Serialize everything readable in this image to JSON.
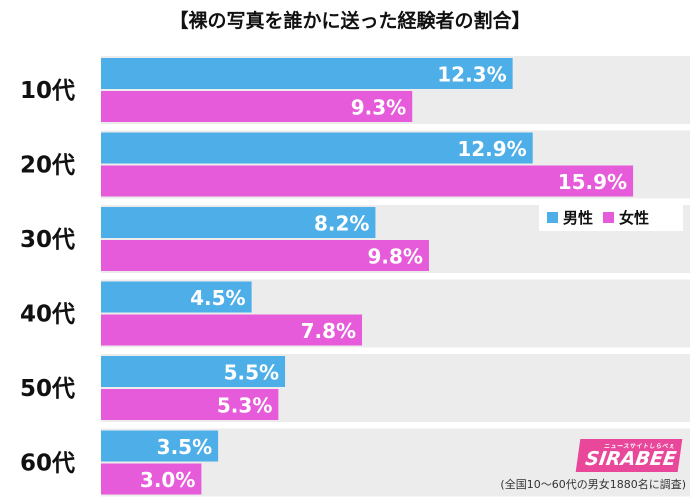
{
  "chart_data": {
    "type": "bar",
    "orientation": "horizontal",
    "title": "【裸の写真を誰かに送った経験者の割合】",
    "categories": [
      "10代",
      "20代",
      "30代",
      "40代",
      "50代",
      "60代"
    ],
    "series": [
      {
        "name": "男性",
        "color": "#4daee8",
        "values": [
          12.3,
          12.9,
          8.2,
          4.5,
          5.5,
          3.5
        ]
      },
      {
        "name": "女性",
        "color": "#e65bd9",
        "values": [
          9.3,
          15.9,
          9.8,
          7.8,
          5.3,
          3.0
        ]
      }
    ],
    "value_suffix": "%",
    "xlim": [
      0,
      17.6
    ],
    "grid": false,
    "legend_position": "right"
  },
  "legend": {
    "male": "男性",
    "female": "女性"
  },
  "colors": {
    "male": "#4daee8",
    "female": "#e65bd9",
    "band": "#ececec",
    "logo": "#e8479a"
  },
  "logo": {
    "sub": "ニュースサイトしらべぇ",
    "main": "SIRABEE"
  },
  "footnote": "(全国10〜60代の男女1880名に調査)"
}
